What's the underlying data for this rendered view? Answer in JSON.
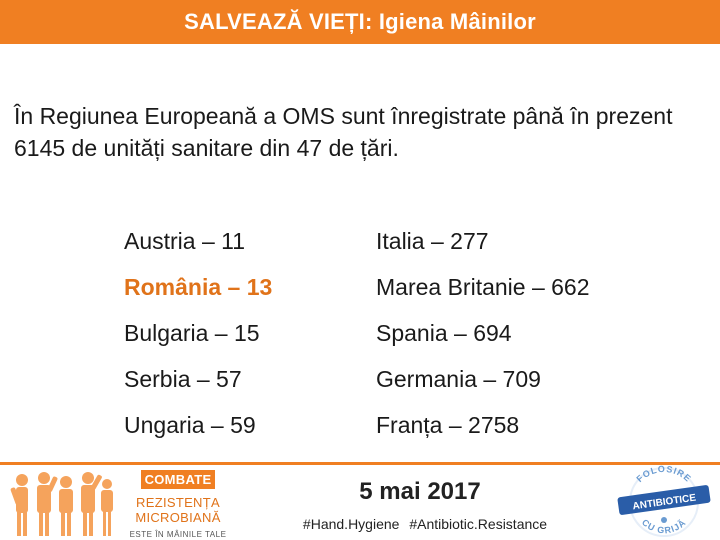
{
  "header": {
    "title": "SALVEAZĂ VIEȚI: Igiena Mâinilor"
  },
  "intro": {
    "text": "În Regiunea Europeană a OMS sunt înregistrate până în prezent 6145 de unități sanitare din 47 de țări."
  },
  "countries": {
    "left": [
      {
        "label": "Austria – 11"
      },
      {
        "label": "România – 13"
      },
      {
        "label": "Bulgaria – 15"
      },
      {
        "label": "Serbia – 57"
      },
      {
        "label": "Ungaria – 59"
      }
    ],
    "right": [
      {
        "label": "Italia – 277"
      },
      {
        "label": "Marea Britanie – 662"
      },
      {
        "label": "Spania – 694"
      },
      {
        "label": "Germania – 709"
      },
      {
        "label": "Franța – 2758"
      }
    ]
  },
  "footer": {
    "campaign": {
      "line1": "COMBATE",
      "line2": "REZISTENȚA",
      "line3": "MICROBIANĂ",
      "line4": "ESTE ÎN MÂINILE TALE"
    },
    "date": "5 mai 2017",
    "hashtags": "#Hand.Hygiene #Antibiotic.Resistance",
    "badge": {
      "top_text": "FOLOSIRE",
      "center_text": "ANTIBIOTICE",
      "bottom_text": "CU GRIJĂ"
    }
  },
  "colors": {
    "accent": "#f07f22",
    "highlight": "#e0731a",
    "badge_blue": "#2a5da8"
  },
  "icons": {
    "people": "people-silhouettes-icon",
    "badge": "antibiotice-badge-icon"
  }
}
